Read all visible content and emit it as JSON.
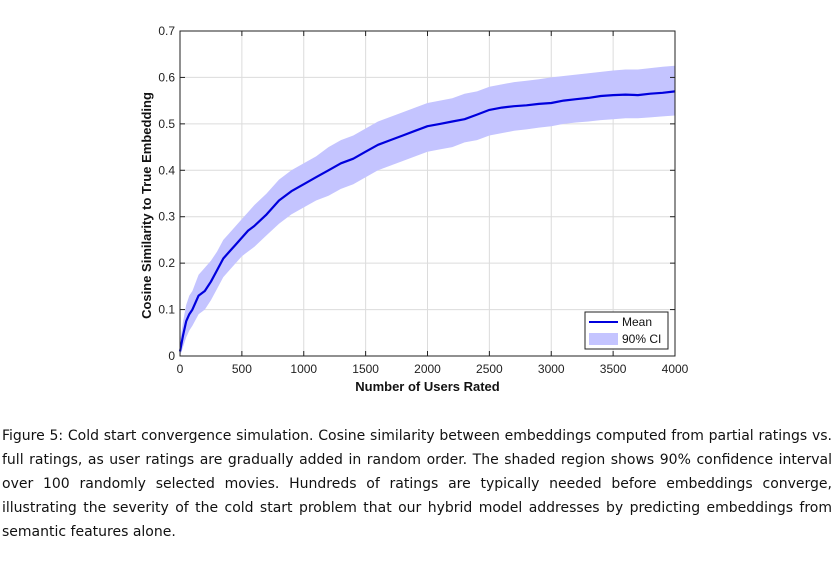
{
  "chart_data": {
    "type": "line",
    "title": "",
    "xlabel": "Number of Users Rated",
    "ylabel": "Cosine Similarity to True Embedding",
    "xlim": [
      0,
      4000
    ],
    "ylim": [
      0,
      0.7
    ],
    "xticks": [
      0,
      500,
      1000,
      1500,
      2000,
      2500,
      3000,
      3500,
      4000
    ],
    "yticks": [
      0,
      0.1,
      0.2,
      0.3,
      0.4,
      0.5,
      0.6,
      0.7
    ],
    "xtick_labels": [
      "0",
      "500",
      "1000",
      "1500",
      "2000",
      "2500",
      "3000",
      "3500",
      "4000"
    ],
    "ytick_labels": [
      "0",
      "0.1",
      "0.2",
      "0.3",
      "0.4",
      "0.5",
      "0.6",
      "0.7"
    ],
    "grid": true,
    "legend_position": "bottom-right",
    "series": [
      {
        "name": "Mean",
        "kind": "line",
        "color": "#0000dd",
        "x": [
          0,
          25,
          50,
          75,
          100,
          150,
          200,
          250,
          300,
          350,
          400,
          450,
          500,
          550,
          600,
          700,
          800,
          900,
          1000,
          1100,
          1200,
          1300,
          1400,
          1500,
          1600,
          1700,
          1800,
          1900,
          2000,
          2100,
          2200,
          2300,
          2400,
          2500,
          2600,
          2700,
          2800,
          2900,
          3000,
          3100,
          3200,
          3300,
          3400,
          3500,
          3600,
          3700,
          3800,
          3900,
          4000
        ],
        "y": [
          0.01,
          0.045,
          0.075,
          0.09,
          0.1,
          0.13,
          0.14,
          0.16,
          0.185,
          0.21,
          0.225,
          0.24,
          0.255,
          0.27,
          0.28,
          0.305,
          0.335,
          0.355,
          0.37,
          0.385,
          0.4,
          0.415,
          0.425,
          0.44,
          0.455,
          0.465,
          0.475,
          0.485,
          0.495,
          0.5,
          0.505,
          0.51,
          0.52,
          0.53,
          0.535,
          0.538,
          0.54,
          0.543,
          0.545,
          0.55,
          0.553,
          0.556,
          0.56,
          0.562,
          0.563,
          0.562,
          0.565,
          0.567,
          0.57
        ]
      },
      {
        "name": "90% CI",
        "kind": "band",
        "color": "#c4c4ff",
        "x": [
          0,
          25,
          50,
          75,
          100,
          150,
          200,
          250,
          300,
          350,
          400,
          450,
          500,
          550,
          600,
          700,
          800,
          900,
          1000,
          1100,
          1200,
          1300,
          1400,
          1500,
          1600,
          1700,
          1800,
          1900,
          2000,
          2100,
          2200,
          2300,
          2400,
          2500,
          2600,
          2700,
          2800,
          2900,
          3000,
          3100,
          3200,
          3300,
          3400,
          3500,
          3600,
          3700,
          3800,
          3900,
          4000
        ],
        "lower": [
          0.0,
          0.02,
          0.04,
          0.055,
          0.065,
          0.09,
          0.1,
          0.12,
          0.145,
          0.17,
          0.185,
          0.2,
          0.215,
          0.225,
          0.235,
          0.26,
          0.285,
          0.305,
          0.32,
          0.335,
          0.345,
          0.36,
          0.37,
          0.385,
          0.4,
          0.41,
          0.42,
          0.43,
          0.44,
          0.445,
          0.45,
          0.46,
          0.465,
          0.475,
          0.48,
          0.485,
          0.488,
          0.492,
          0.495,
          0.5,
          0.503,
          0.505,
          0.508,
          0.51,
          0.512,
          0.512,
          0.514,
          0.516,
          0.518
        ],
        "upper": [
          0.03,
          0.075,
          0.11,
          0.13,
          0.14,
          0.175,
          0.19,
          0.205,
          0.225,
          0.25,
          0.265,
          0.28,
          0.295,
          0.31,
          0.325,
          0.35,
          0.38,
          0.4,
          0.415,
          0.43,
          0.45,
          0.465,
          0.475,
          0.49,
          0.505,
          0.515,
          0.525,
          0.535,
          0.545,
          0.55,
          0.555,
          0.565,
          0.57,
          0.58,
          0.585,
          0.59,
          0.593,
          0.596,
          0.6,
          0.603,
          0.606,
          0.609,
          0.612,
          0.615,
          0.617,
          0.617,
          0.62,
          0.623,
          0.625
        ]
      }
    ]
  },
  "caption": "Figure 5: Cold start convergence simulation. Cosine similarity between embeddings computed from partial ratings vs. full ratings, as user ratings are gradually added in random order. The shaded region shows 90% confidence interval over 100 randomly selected movies. Hundreds of ratings are typically needed before embeddings converge, illustrating the severity of the cold start problem that our hybrid model addresses by predicting embeddings from semantic features alone."
}
